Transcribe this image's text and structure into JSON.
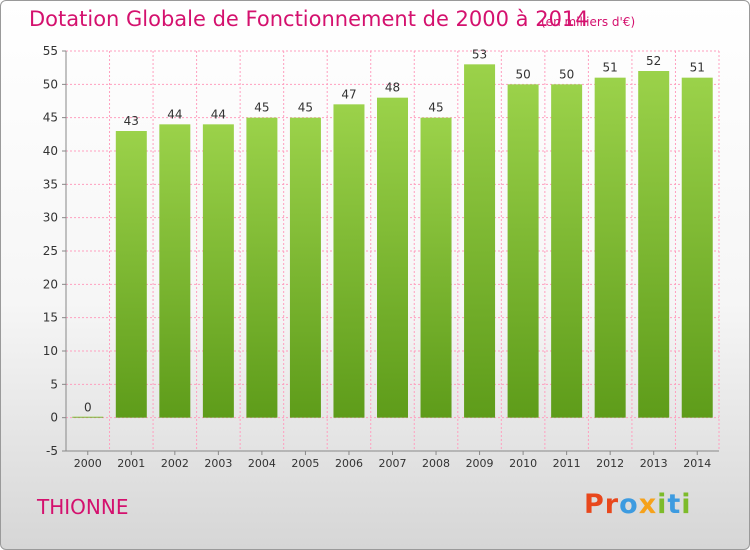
{
  "header": {
    "title": "Dotation Globale de Fonctionnement de 2000 à 2014",
    "subtitle": "(en milliers d'€)"
  },
  "footer": {
    "commune": "THIONNE",
    "logo": {
      "text": "Proxiti",
      "colors": [
        "#e8471c",
        "#e8471c",
        "#3d9be0",
        "#f6a21b",
        "#7dbb2a",
        "#3d9be0",
        "#7dbb2a"
      ]
    }
  },
  "colors": {
    "bar_top": "#9bd24a",
    "bar_bottom": "#5e9c1a",
    "grid": "#ff9fbf",
    "axis_text": "#333333"
  },
  "chart_data": {
    "type": "bar",
    "categories": [
      "2000",
      "2001",
      "2002",
      "2003",
      "2004",
      "2005",
      "2006",
      "2007",
      "2008",
      "2009",
      "2010",
      "2011",
      "2012",
      "2013",
      "2014"
    ],
    "values": [
      0,
      43,
      44,
      44,
      45,
      45,
      47,
      48,
      45,
      53,
      50,
      50,
      51,
      52,
      51
    ],
    "data_labels": [
      "0",
      "43",
      "44",
      "44",
      "45",
      "45",
      "47",
      "48",
      "45",
      "53",
      "50",
      "50",
      "51",
      "52",
      "51"
    ],
    "title": "Dotation Globale de Fonctionnement de 2000 à 2014",
    "ylim": [
      -5,
      55
    ],
    "yticks": [
      "-5",
      "0",
      "5",
      "10",
      "15",
      "20",
      "25",
      "30",
      "35",
      "40",
      "45",
      "50",
      "55"
    ],
    "grid": true,
    "legend": "none"
  }
}
